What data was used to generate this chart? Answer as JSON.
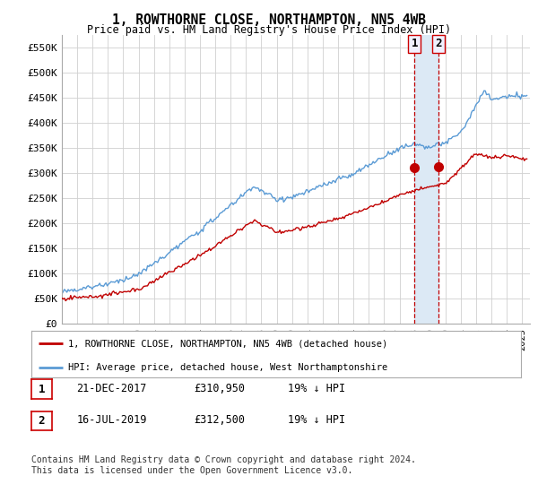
{
  "title": "1, ROWTHORNE CLOSE, NORTHAMPTON, NN5 4WB",
  "subtitle": "Price paid vs. HM Land Registry's House Price Index (HPI)",
  "ylabel_ticks": [
    "£0",
    "£50K",
    "£100K",
    "£150K",
    "£200K",
    "£250K",
    "£300K",
    "£350K",
    "£400K",
    "£450K",
    "£500K",
    "£550K"
  ],
  "ytick_values": [
    0,
    50000,
    100000,
    150000,
    200000,
    250000,
    300000,
    350000,
    400000,
    450000,
    500000,
    550000
  ],
  "ylim": [
    0,
    575000
  ],
  "xlim_start": 1995.0,
  "xlim_end": 2025.5,
  "hpi_color": "#5b9bd5",
  "price_color": "#c00000",
  "marker1_date": 2017.97,
  "marker2_date": 2019.54,
  "marker1_price": 310950,
  "marker2_price": 312500,
  "legend_label1": "1, ROWTHORNE CLOSE, NORTHAMPTON, NN5 4WB (detached house)",
  "legend_label2": "HPI: Average price, detached house, West Northamptonshire",
  "table_row1": [
    "1",
    "21-DEC-2017",
    "£310,950",
    "19% ↓ HPI"
  ],
  "table_row2": [
    "2",
    "16-JUL-2019",
    "£312,500",
    "19% ↓ HPI"
  ],
  "footnote": "Contains HM Land Registry data © Crown copyright and database right 2024.\nThis data is licensed under the Open Government Licence v3.0.",
  "background_color": "#ffffff",
  "grid_color": "#d0d0d0",
  "shade_color": "#dce9f5"
}
